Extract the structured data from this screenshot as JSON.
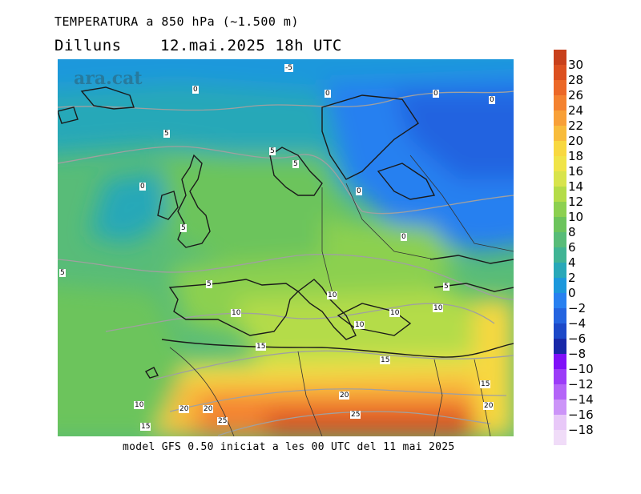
{
  "title": "TEMPERATURA a 850 hPa (~1.500 m)",
  "day": "Dilluns",
  "datetime": "12.mai.2025 18h UTC",
  "footer": "model GFS 0.50 iniciat a les 00 UTC del 11 mai 2025",
  "watermark": "ara.cat",
  "legend": [
    {
      "value": "30",
      "color": "#c8401c"
    },
    {
      "value": "28",
      "color": "#dc5020"
    },
    {
      "value": "26",
      "color": "#ec6828"
    },
    {
      "value": "24",
      "color": "#f48230"
    },
    {
      "value": "22",
      "color": "#f8a038"
    },
    {
      "value": "20",
      "color": "#f8bc3c"
    },
    {
      "value": "18",
      "color": "#f8d840"
    },
    {
      "value": "16",
      "color": "#f0e448"
    },
    {
      "value": "14",
      "color": "#d8e44c"
    },
    {
      "value": "12",
      "color": "#b4dc48"
    },
    {
      "value": "10",
      "color": "#8cd050"
    },
    {
      "value": "8",
      "color": "#6cc45c"
    },
    {
      "value": "6",
      "color": "#58bc78"
    },
    {
      "value": "4",
      "color": "#40b494"
    },
    {
      "value": "2",
      "color": "#28a8b8"
    },
    {
      "value": "0",
      "color": "#1c98dc"
    },
    {
      "value": "−2",
      "color": "#2880f0"
    },
    {
      "value": "−4",
      "color": "#2464e0"
    },
    {
      "value": "−6",
      "color": "#1c48c8"
    },
    {
      "value": "−8",
      "color": "#1828a8"
    },
    {
      "value": "−10",
      "color": "#8010f8"
    },
    {
      "value": "−12",
      "color": "#9c3cf8"
    },
    {
      "value": "−14",
      "color": "#b464f8"
    },
    {
      "value": "−16",
      "color": "#cc94f8"
    },
    {
      "value": "−18",
      "color": "#e8c8f8"
    }
  ],
  "contour_labels": [
    {
      "text": "-5"
    },
    {
      "text": "0"
    },
    {
      "text": "0"
    },
    {
      "text": "0"
    },
    {
      "text": "0"
    },
    {
      "text": "0"
    },
    {
      "text": "0"
    },
    {
      "text": "0"
    },
    {
      "text": "5"
    },
    {
      "text": "5"
    },
    {
      "text": "5"
    },
    {
      "text": "5"
    },
    {
      "text": "5"
    },
    {
      "text": "5"
    },
    {
      "text": "5"
    },
    {
      "text": "10"
    },
    {
      "text": "10"
    },
    {
      "text": "10"
    },
    {
      "text": "10"
    },
    {
      "text": "10"
    },
    {
      "text": "10"
    },
    {
      "text": "15"
    },
    {
      "text": "15"
    },
    {
      "text": "15"
    },
    {
      "text": "15"
    },
    {
      "text": "20"
    },
    {
      "text": "20"
    },
    {
      "text": "20"
    },
    {
      "text": "20"
    },
    {
      "text": "25"
    },
    {
      "text": "25"
    }
  ]
}
